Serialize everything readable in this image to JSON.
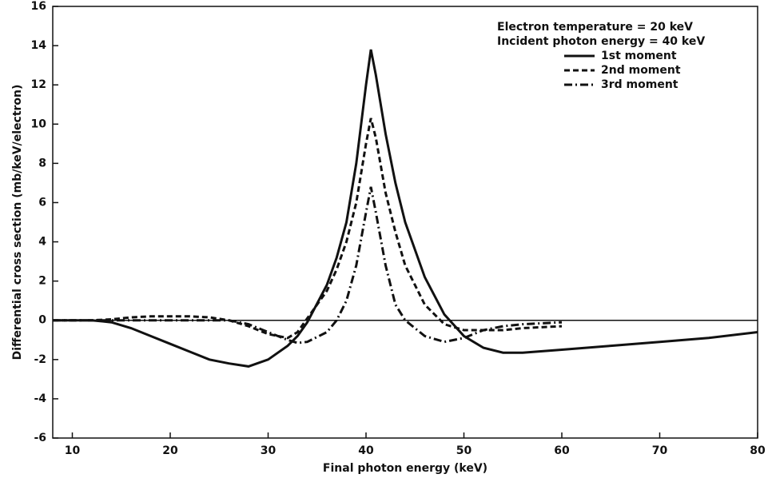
{
  "chart_data": {
    "type": "line",
    "annotations": [
      "Electron temperature = 20 keV",
      "Incident photon energy = 40 keV"
    ],
    "xlabel": "Final photon energy (keV)",
    "ylabel": "Differential cross section (mb/keV/electron)",
    "x": [
      8,
      10,
      12,
      14,
      16,
      18,
      20,
      22,
      24,
      26,
      28,
      30,
      32,
      33,
      34,
      36,
      37,
      38,
      39,
      40,
      40.5,
      41,
      42,
      43,
      44,
      46,
      48,
      50,
      52,
      54,
      56,
      60,
      65,
      70,
      75,
      80
    ],
    "series": [
      {
        "name": "1st moment",
        "color": "#111111",
        "dash": "solid",
        "values": [
          0,
          0,
          0,
          -0.1,
          -0.4,
          -0.8,
          -1.2,
          -1.6,
          -2.0,
          -2.2,
          -2.35,
          -2.0,
          -1.3,
          -0.8,
          -0.1,
          1.8,
          3.2,
          5.0,
          8.0,
          12.0,
          13.8,
          12.5,
          9.5,
          7.0,
          5.0,
          2.2,
          0.3,
          -0.8,
          -1.4,
          -1.65,
          -1.65,
          -1.5,
          -1.3,
          -1.1,
          -0.9,
          -0.6
        ]
      },
      {
        "name": "2nd moment",
        "color": "#111111",
        "dash": "dashed",
        "values": [
          0,
          0,
          0,
          0.05,
          0.15,
          0.2,
          0.2,
          0.2,
          0.15,
          0,
          -0.3,
          -0.7,
          -0.9,
          -0.6,
          0.1,
          1.5,
          2.6,
          4.0,
          6.0,
          9.0,
          10.3,
          9.3,
          6.5,
          4.5,
          2.8,
          0.8,
          -0.2,
          -0.5,
          -0.5,
          -0.5,
          -0.4,
          -0.3,
          null,
          null,
          null,
          null
        ]
      },
      {
        "name": "3rd moment",
        "color": "#111111",
        "dash": "dashdot",
        "values": [
          0,
          0,
          0,
          0,
          0,
          0,
          0,
          0,
          0,
          0,
          -0.2,
          -0.6,
          -1.0,
          -1.15,
          -1.1,
          -0.6,
          0.0,
          1.0,
          2.8,
          5.5,
          6.8,
          5.5,
          2.8,
          0.8,
          0,
          -0.8,
          -1.1,
          -0.9,
          -0.5,
          -0.3,
          -0.2,
          -0.1,
          null,
          null,
          null,
          null
        ]
      }
    ],
    "hlines": [
      0
    ],
    "xlim": [
      8,
      80
    ],
    "xticks": [
      10,
      20,
      30,
      40,
      50,
      60,
      70,
      80
    ],
    "ylim": [
      -6,
      16
    ],
    "yticks": [
      -6,
      -4,
      -2,
      0,
      2,
      4,
      6,
      8,
      10,
      12,
      14,
      16
    ],
    "grid": false,
    "legend": "upper right"
  }
}
